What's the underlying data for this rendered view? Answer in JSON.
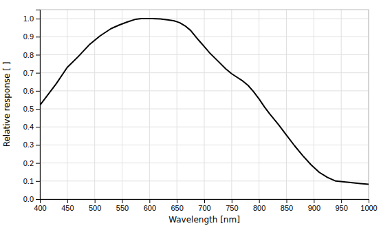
{
  "chart_data": {
    "type": "line",
    "x": [
      400,
      430,
      450,
      470,
      490,
      510,
      530,
      545,
      560,
      575,
      585,
      595,
      605,
      620,
      635,
      645,
      655,
      665,
      675,
      690,
      700,
      710,
      725,
      740,
      750,
      760,
      770,
      780,
      790,
      800,
      810,
      820,
      835,
      850,
      865,
      880,
      895,
      910,
      925,
      940,
      955,
      970,
      985,
      1000
    ],
    "values": [
      0.52,
      0.64,
      0.73,
      0.79,
      0.855,
      0.905,
      0.945,
      0.965,
      0.982,
      0.997,
      1.0,
      1.0,
      1.0,
      0.998,
      0.993,
      0.988,
      0.978,
      0.96,
      0.935,
      0.88,
      0.845,
      0.81,
      0.765,
      0.72,
      0.695,
      0.675,
      0.655,
      0.63,
      0.595,
      0.555,
      0.51,
      0.47,
      0.415,
      0.355,
      0.295,
      0.24,
      0.19,
      0.148,
      0.12,
      0.1,
      0.095,
      0.091,
      0.086,
      0.082
    ],
    "color": "#000000",
    "xlabel": "Wavelength [nm]",
    "ylabel": "Relative response [ ]",
    "xlim": [
      400,
      1000
    ],
    "ylim": [
      0.0,
      1.05
    ],
    "xticks": [
      400,
      450,
      500,
      550,
      600,
      650,
      700,
      750,
      800,
      850,
      900,
      950,
      1000
    ],
    "yticks": [
      {
        "value": 0.0,
        "label": "0.0"
      },
      0.1,
      0.2,
      0.3,
      0.4,
      0.5,
      0.6,
      0.7,
      0.8,
      0.9,
      {
        "value": 1.0,
        "label": "1.0"
      }
    ],
    "grid": true
  }
}
